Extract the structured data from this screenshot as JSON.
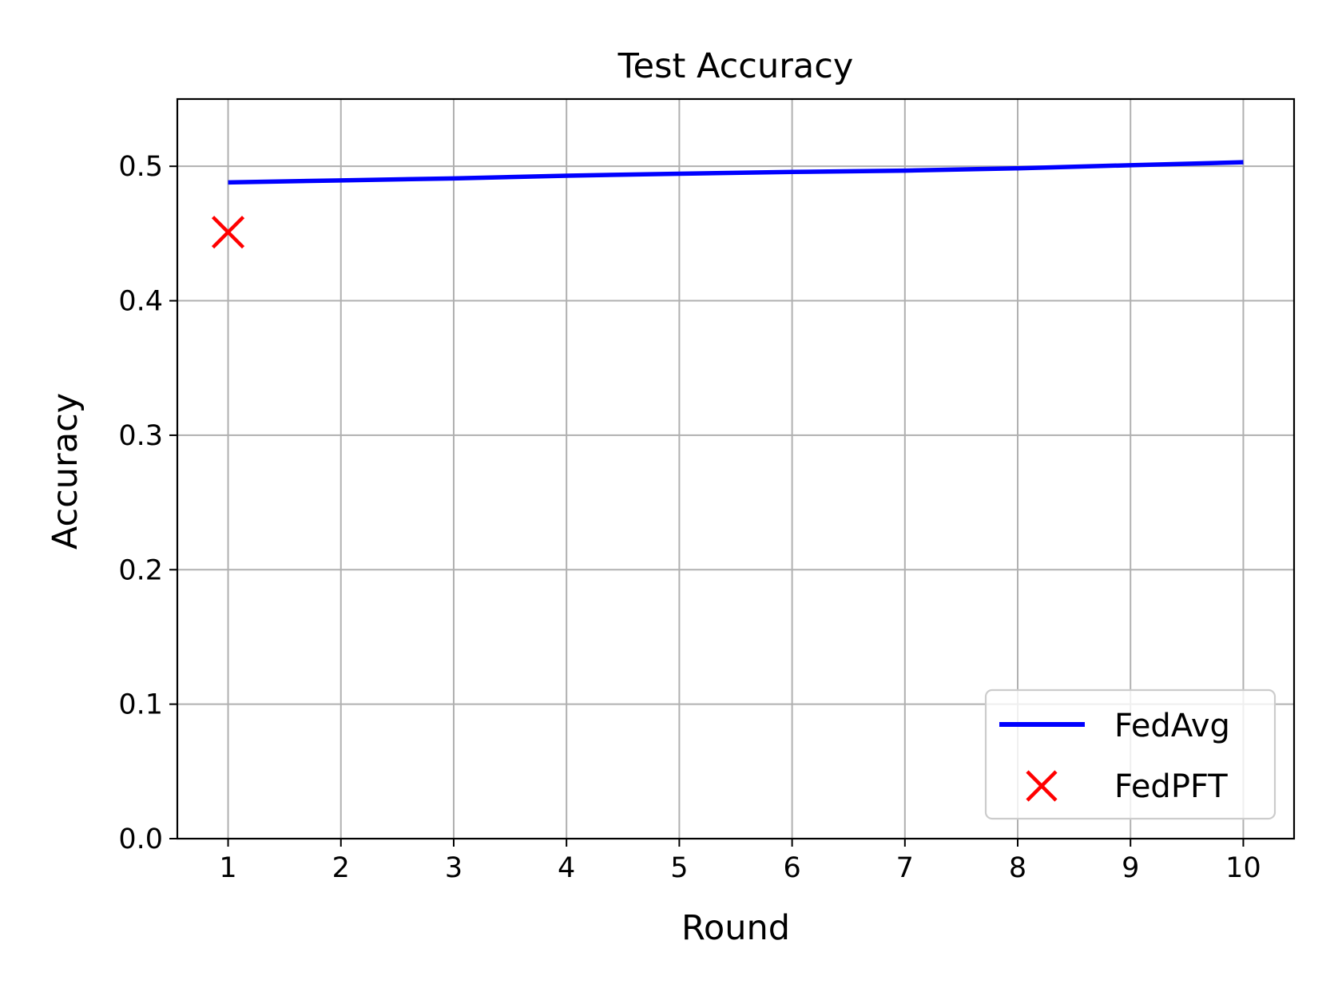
{
  "chart_data": {
    "type": "line",
    "title": "Test Accuracy",
    "xlabel": "Round",
    "ylabel": "Accuracy",
    "xlim": [
      0.55,
      10.45
    ],
    "ylim": [
      0.0,
      0.55
    ],
    "x_ticks": [
      1,
      2,
      3,
      4,
      5,
      6,
      7,
      8,
      9,
      10
    ],
    "x_tick_labels": [
      "1",
      "2",
      "3",
      "4",
      "5",
      "6",
      "7",
      "8",
      "9",
      "10"
    ],
    "y_ticks": [
      0.0,
      0.1,
      0.2,
      0.3,
      0.4,
      0.5
    ],
    "y_tick_labels": [
      "0.0",
      "0.1",
      "0.2",
      "0.3",
      "0.4",
      "0.5"
    ],
    "grid": true,
    "legend_position": "lower-right",
    "series": [
      {
        "name": "FedAvg",
        "kind": "line",
        "color": "#0000ff",
        "x": [
          1,
          2,
          3,
          4,
          5,
          6,
          7,
          8,
          9,
          10
        ],
        "y": [
          0.488,
          0.4895,
          0.491,
          0.493,
          0.4945,
          0.4958,
          0.4968,
          0.4985,
          0.5008,
          0.503
        ]
      },
      {
        "name": "FedPFT",
        "kind": "marker",
        "marker": "x",
        "color": "#ff0000",
        "x": [
          1
        ],
        "y": [
          0.451
        ]
      }
    ]
  }
}
